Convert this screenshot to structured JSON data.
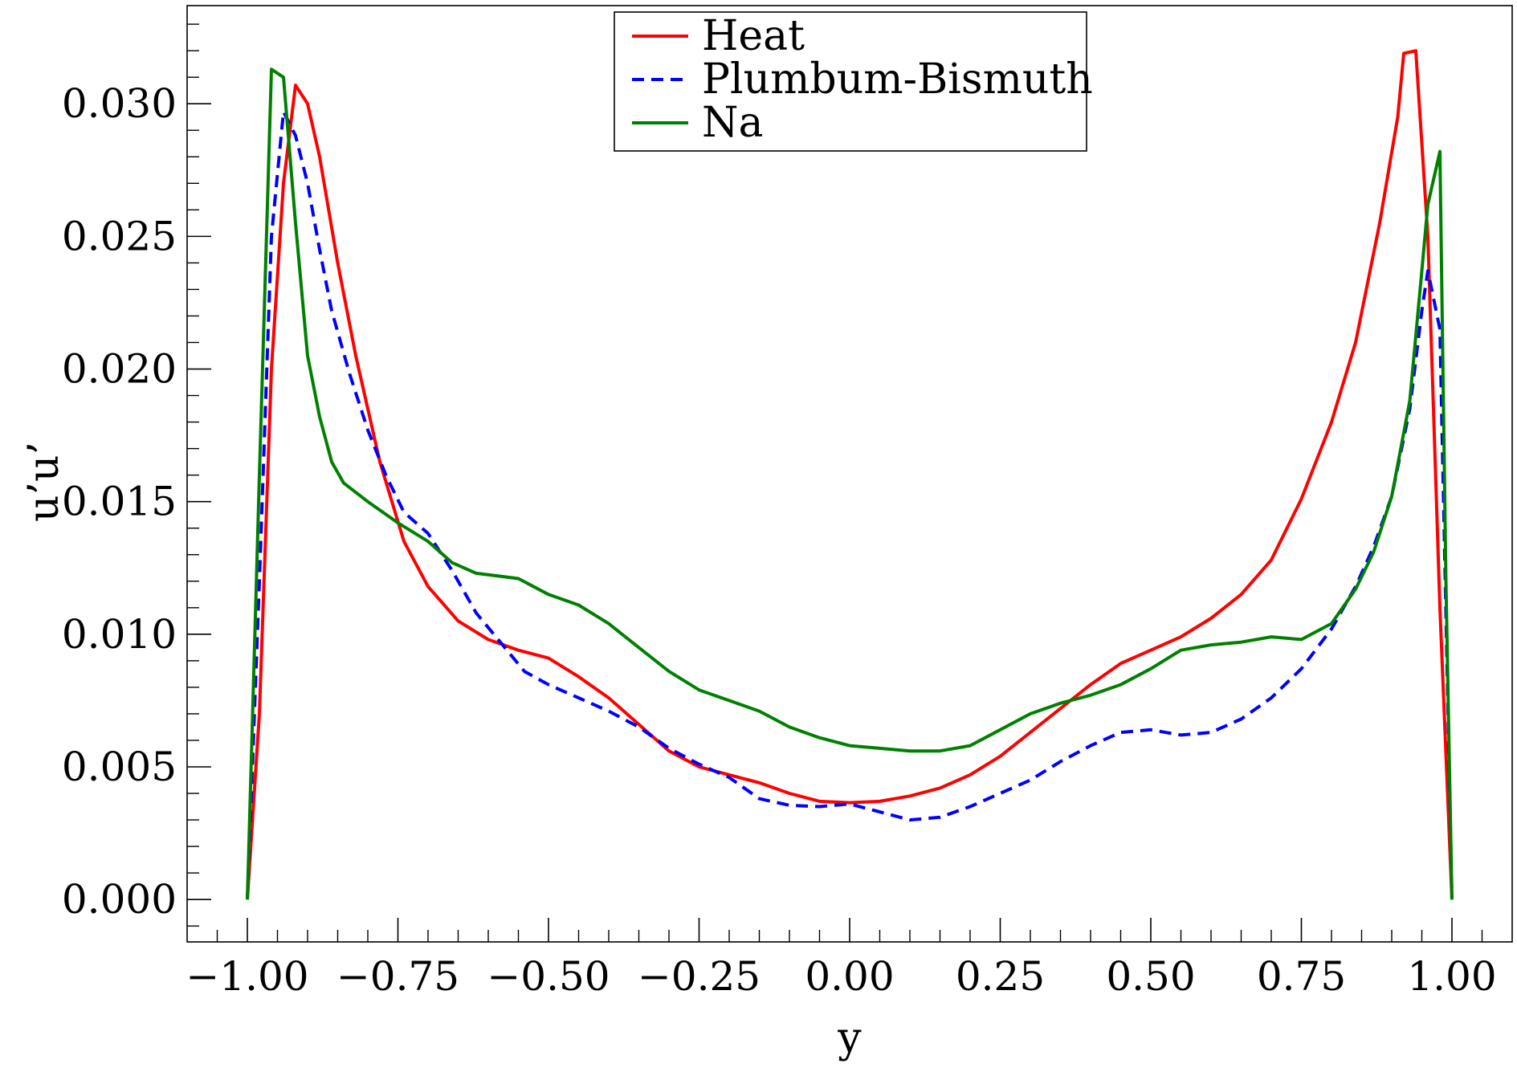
{
  "chart_data": {
    "type": "line",
    "xlabel": "y",
    "ylabel": "u’u’",
    "xlim": [
      -1.1,
      1.1
    ],
    "ylim": [
      -0.0016,
      0.0337
    ],
    "x_ticks": [
      -1.0,
      -0.75,
      -0.5,
      -0.25,
      0.0,
      0.25,
      0.5,
      0.75,
      1.0
    ],
    "x_tick_labels": [
      "−1.00",
      "−0.75",
      "−0.50",
      "−0.25",
      "0.00",
      "0.25",
      "0.50",
      "0.75",
      "1.00"
    ],
    "y_ticks": [
      0.0,
      0.005,
      0.01,
      0.015,
      0.02,
      0.025,
      0.03
    ],
    "y_tick_labels": [
      "0.000",
      "0.005",
      "0.010",
      "0.015",
      "0.020",
      "0.025",
      "0.030"
    ],
    "grid": false,
    "legend_position": "top-center",
    "series": [
      {
        "name": "Heat",
        "color": "#ff0000",
        "dash": "solid",
        "points": [
          [
            -1.0,
            0.0
          ],
          [
            -0.98,
            0.007
          ],
          [
            -0.96,
            0.02
          ],
          [
            -0.94,
            0.027
          ],
          [
            -0.92,
            0.0307
          ],
          [
            -0.9,
            0.03
          ],
          [
            -0.88,
            0.028
          ],
          [
            -0.85,
            0.024
          ],
          [
            -0.82,
            0.0205
          ],
          [
            -0.78,
            0.0165
          ],
          [
            -0.74,
            0.0135
          ],
          [
            -0.7,
            0.0118
          ],
          [
            -0.65,
            0.0105
          ],
          [
            -0.6,
            0.0098
          ],
          [
            -0.55,
            0.0094
          ],
          [
            -0.5,
            0.0091
          ],
          [
            -0.45,
            0.0084
          ],
          [
            -0.4,
            0.0076
          ],
          [
            -0.35,
            0.0066
          ],
          [
            -0.3,
            0.0056
          ],
          [
            -0.25,
            0.005
          ],
          [
            -0.2,
            0.0047
          ],
          [
            -0.15,
            0.0044
          ],
          [
            -0.1,
            0.004
          ],
          [
            -0.05,
            0.0037
          ],
          [
            0.0,
            0.00365
          ],
          [
            0.05,
            0.0037
          ],
          [
            0.1,
            0.0039
          ],
          [
            0.15,
            0.0042
          ],
          [
            0.2,
            0.0047
          ],
          [
            0.25,
            0.0054
          ],
          [
            0.3,
            0.0063
          ],
          [
            0.35,
            0.0072
          ],
          [
            0.4,
            0.0081
          ],
          [
            0.45,
            0.0089
          ],
          [
            0.5,
            0.0094
          ],
          [
            0.55,
            0.0099
          ],
          [
            0.6,
            0.0106
          ],
          [
            0.65,
            0.0115
          ],
          [
            0.7,
            0.0128
          ],
          [
            0.75,
            0.0151
          ],
          [
            0.8,
            0.018
          ],
          [
            0.84,
            0.021
          ],
          [
            0.88,
            0.0255
          ],
          [
            0.91,
            0.0295
          ],
          [
            0.92,
            0.0319
          ],
          [
            0.94,
            0.032
          ],
          [
            0.96,
            0.025
          ],
          [
            0.98,
            0.011
          ],
          [
            1.0,
            0.0
          ]
        ]
      },
      {
        "name": "Plumbum-Bismuth",
        "color": "#0000ff",
        "dash": "dashed",
        "points": [
          [
            -1.0,
            0.0
          ],
          [
            -0.98,
            0.012
          ],
          [
            -0.96,
            0.025
          ],
          [
            -0.94,
            0.0297
          ],
          [
            -0.92,
            0.0288
          ],
          [
            -0.9,
            0.027
          ],
          [
            -0.88,
            0.0245
          ],
          [
            -0.86,
            0.0222
          ],
          [
            -0.83,
            0.0198
          ],
          [
            -0.8,
            0.0177
          ],
          [
            -0.77,
            0.016
          ],
          [
            -0.74,
            0.0146
          ],
          [
            -0.7,
            0.0138
          ],
          [
            -0.66,
            0.0124
          ],
          [
            -0.62,
            0.0108
          ],
          [
            -0.58,
            0.0097
          ],
          [
            -0.54,
            0.0086
          ],
          [
            -0.5,
            0.0081
          ],
          [
            -0.45,
            0.0076
          ],
          [
            -0.4,
            0.0071
          ],
          [
            -0.35,
            0.0065
          ],
          [
            -0.3,
            0.0057
          ],
          [
            -0.25,
            0.0051
          ],
          [
            -0.2,
            0.0046
          ],
          [
            -0.15,
            0.0038
          ],
          [
            -0.1,
            0.00355
          ],
          [
            -0.05,
            0.0035
          ],
          [
            0.0,
            0.0036
          ],
          [
            0.05,
            0.0033
          ],
          [
            0.1,
            0.003
          ],
          [
            0.15,
            0.0031
          ],
          [
            0.2,
            0.0035
          ],
          [
            0.25,
            0.004
          ],
          [
            0.3,
            0.0045
          ],
          [
            0.35,
            0.0052
          ],
          [
            0.4,
            0.0058
          ],
          [
            0.45,
            0.0063
          ],
          [
            0.5,
            0.0064
          ],
          [
            0.55,
            0.0062
          ],
          [
            0.6,
            0.0063
          ],
          [
            0.65,
            0.0068
          ],
          [
            0.7,
            0.0076
          ],
          [
            0.75,
            0.0087
          ],
          [
            0.8,
            0.0102
          ],
          [
            0.84,
            0.0118
          ],
          [
            0.87,
            0.0133
          ],
          [
            0.9,
            0.0152
          ],
          [
            0.93,
            0.0185
          ],
          [
            0.95,
            0.0222
          ],
          [
            0.96,
            0.0237
          ],
          [
            0.98,
            0.0215
          ],
          [
            1.0,
            0.0
          ]
        ]
      },
      {
        "name": "Na",
        "color": "#008000",
        "dash": "solid",
        "points": [
          [
            -1.0,
            0.0
          ],
          [
            -0.98,
            0.016
          ],
          [
            -0.96,
            0.0313
          ],
          [
            -0.94,
            0.031
          ],
          [
            -0.92,
            0.0255
          ],
          [
            -0.9,
            0.0205
          ],
          [
            -0.88,
            0.0182
          ],
          [
            -0.86,
            0.0165
          ],
          [
            -0.84,
            0.0157
          ],
          [
            -0.8,
            0.015
          ],
          [
            -0.75,
            0.0142
          ],
          [
            -0.7,
            0.0135
          ],
          [
            -0.66,
            0.0127
          ],
          [
            -0.62,
            0.0123
          ],
          [
            -0.55,
            0.0121
          ],
          [
            -0.5,
            0.0115
          ],
          [
            -0.45,
            0.0111
          ],
          [
            -0.4,
            0.0104
          ],
          [
            -0.35,
            0.0095
          ],
          [
            -0.3,
            0.0086
          ],
          [
            -0.25,
            0.0079
          ],
          [
            -0.2,
            0.0075
          ],
          [
            -0.15,
            0.0071
          ],
          [
            -0.1,
            0.0065
          ],
          [
            -0.05,
            0.0061
          ],
          [
            0.0,
            0.0058
          ],
          [
            0.05,
            0.0057
          ],
          [
            0.1,
            0.0056
          ],
          [
            0.15,
            0.0056
          ],
          [
            0.2,
            0.0058
          ],
          [
            0.25,
            0.0064
          ],
          [
            0.3,
            0.007
          ],
          [
            0.35,
            0.0074
          ],
          [
            0.4,
            0.0077
          ],
          [
            0.45,
            0.0081
          ],
          [
            0.5,
            0.0087
          ],
          [
            0.55,
            0.0094
          ],
          [
            0.6,
            0.0096
          ],
          [
            0.65,
            0.0097
          ],
          [
            0.7,
            0.0099
          ],
          [
            0.75,
            0.0098
          ],
          [
            0.8,
            0.0104
          ],
          [
            0.84,
            0.0117
          ],
          [
            0.87,
            0.0131
          ],
          [
            0.9,
            0.0152
          ],
          [
            0.93,
            0.0188
          ],
          [
            0.95,
            0.0237
          ],
          [
            0.96,
            0.0262
          ],
          [
            0.98,
            0.0282
          ],
          [
            0.99,
            0.012
          ],
          [
            1.0,
            0.0
          ]
        ]
      }
    ]
  }
}
